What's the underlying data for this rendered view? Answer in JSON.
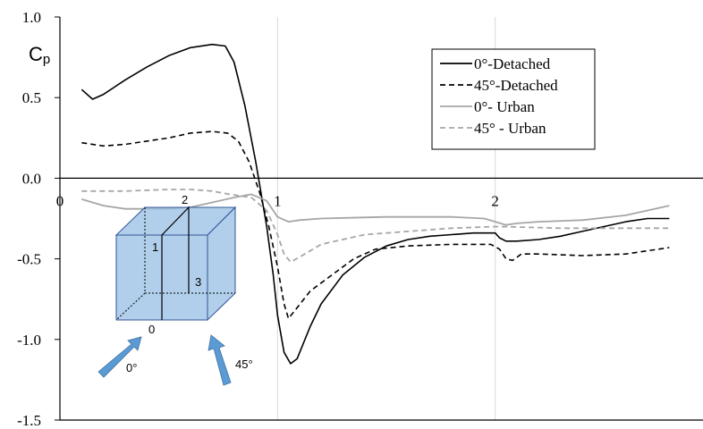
{
  "chart_data": {
    "type": "line",
    "ylabel": "Cp",
    "ylabel_main": "C",
    "ylabel_sub": "p",
    "ylim": [
      -1.5,
      1.0
    ],
    "xlim": [
      0,
      3
    ],
    "y_ticks": [
      "1.0",
      "0.5",
      "0.0",
      "-0.5",
      "-1.0",
      "-1.5"
    ],
    "y_tick_values": [
      1.0,
      0.5,
      0.0,
      -0.5,
      -1.0,
      -1.5
    ],
    "x_ticks": [
      "0",
      "1",
      "2"
    ],
    "x_tick_values": [
      0,
      1,
      2
    ],
    "grid": "vertical",
    "legend_position": "top-right",
    "series": [
      {
        "name": "0°-Detached",
        "color": "#000000",
        "dash": "solid",
        "points": [
          [
            0.1,
            0.55
          ],
          [
            0.15,
            0.49
          ],
          [
            0.2,
            0.52
          ],
          [
            0.3,
            0.61
          ],
          [
            0.4,
            0.69
          ],
          [
            0.5,
            0.76
          ],
          [
            0.6,
            0.81
          ],
          [
            0.7,
            0.83
          ],
          [
            0.76,
            0.82
          ],
          [
            0.8,
            0.72
          ],
          [
            0.85,
            0.45
          ],
          [
            0.9,
            0.1
          ],
          [
            0.95,
            -0.3
          ],
          [
            0.98,
            -0.6
          ],
          [
            1.0,
            -0.85
          ],
          [
            1.03,
            -1.08
          ],
          [
            1.06,
            -1.15
          ],
          [
            1.09,
            -1.12
          ],
          [
            1.15,
            -0.92
          ],
          [
            1.2,
            -0.78
          ],
          [
            1.3,
            -0.6
          ],
          [
            1.4,
            -0.49
          ],
          [
            1.5,
            -0.42
          ],
          [
            1.6,
            -0.38
          ],
          [
            1.7,
            -0.36
          ],
          [
            1.8,
            -0.35
          ],
          [
            1.9,
            -0.34
          ],
          [
            2.0,
            -0.34
          ],
          [
            2.02,
            -0.37
          ],
          [
            2.05,
            -0.39
          ],
          [
            2.1,
            -0.39
          ],
          [
            2.2,
            -0.38
          ],
          [
            2.3,
            -0.36
          ],
          [
            2.4,
            -0.33
          ],
          [
            2.5,
            -0.3
          ],
          [
            2.6,
            -0.27
          ],
          [
            2.7,
            -0.25
          ],
          [
            2.8,
            -0.25
          ]
        ]
      },
      {
        "name": "45°-Detached",
        "color": "#000000",
        "dash": "dashed",
        "points": [
          [
            0.1,
            0.22
          ],
          [
            0.2,
            0.2
          ],
          [
            0.3,
            0.21
          ],
          [
            0.5,
            0.25
          ],
          [
            0.6,
            0.28
          ],
          [
            0.7,
            0.29
          ],
          [
            0.77,
            0.28
          ],
          [
            0.82,
            0.23
          ],
          [
            0.87,
            0.1
          ],
          [
            0.92,
            -0.1
          ],
          [
            0.96,
            -0.3
          ],
          [
            1.0,
            -0.55
          ],
          [
            1.03,
            -0.78
          ],
          [
            1.05,
            -0.87
          ],
          [
            1.08,
            -0.82
          ],
          [
            1.15,
            -0.7
          ],
          [
            1.25,
            -0.6
          ],
          [
            1.35,
            -0.5
          ],
          [
            1.45,
            -0.44
          ],
          [
            1.6,
            -0.42
          ],
          [
            1.8,
            -0.41
          ],
          [
            1.98,
            -0.41
          ],
          [
            2.02,
            -0.44
          ],
          [
            2.05,
            -0.5
          ],
          [
            2.08,
            -0.51
          ],
          [
            2.12,
            -0.47
          ],
          [
            2.2,
            -0.47
          ],
          [
            2.4,
            -0.48
          ],
          [
            2.6,
            -0.47
          ],
          [
            2.7,
            -0.45
          ],
          [
            2.8,
            -0.43
          ]
        ]
      },
      {
        "name": "0°- Urban",
        "color": "#a6a6a6",
        "dash": "solid",
        "points": [
          [
            0.1,
            -0.13
          ],
          [
            0.2,
            -0.17
          ],
          [
            0.3,
            -0.19
          ],
          [
            0.4,
            -0.19
          ],
          [
            0.5,
            -0.19
          ],
          [
            0.6,
            -0.18
          ],
          [
            0.7,
            -0.15
          ],
          [
            0.8,
            -0.12
          ],
          [
            0.88,
            -0.1
          ],
          [
            0.95,
            -0.14
          ],
          [
            1.0,
            -0.24
          ],
          [
            1.05,
            -0.27
          ],
          [
            1.1,
            -0.26
          ],
          [
            1.2,
            -0.25
          ],
          [
            1.5,
            -0.24
          ],
          [
            1.8,
            -0.24
          ],
          [
            1.95,
            -0.25
          ],
          [
            2.0,
            -0.27
          ],
          [
            2.05,
            -0.29
          ],
          [
            2.1,
            -0.28
          ],
          [
            2.2,
            -0.27
          ],
          [
            2.4,
            -0.26
          ],
          [
            2.6,
            -0.23
          ],
          [
            2.7,
            -0.2
          ],
          [
            2.8,
            -0.17
          ]
        ]
      },
      {
        "name": "45° - Urban",
        "color": "#a6a6a6",
        "dash": "dashed",
        "points": [
          [
            0.1,
            -0.08
          ],
          [
            0.2,
            -0.08
          ],
          [
            0.3,
            -0.08
          ],
          [
            0.5,
            -0.07
          ],
          [
            0.6,
            -0.07
          ],
          [
            0.7,
            -0.08
          ],
          [
            0.78,
            -0.1
          ],
          [
            0.88,
            -0.12
          ],
          [
            0.95,
            -0.2
          ],
          [
            1.0,
            -0.35
          ],
          [
            1.03,
            -0.47
          ],
          [
            1.06,
            -0.52
          ],
          [
            1.1,
            -0.49
          ],
          [
            1.2,
            -0.41
          ],
          [
            1.4,
            -0.35
          ],
          [
            1.6,
            -0.33
          ],
          [
            1.8,
            -0.31
          ],
          [
            2.0,
            -0.3
          ],
          [
            2.02,
            -0.3
          ],
          [
            2.3,
            -0.31
          ],
          [
            2.6,
            -0.31
          ],
          [
            2.8,
            -0.31
          ]
        ]
      }
    ],
    "inset": {
      "edge_labels": [
        "0",
        "1",
        "2",
        "3"
      ],
      "arrow_labels": [
        "0°",
        "45°"
      ],
      "fill_color": "#9dc3e6",
      "arrow_color": "#5b9bd5"
    }
  }
}
